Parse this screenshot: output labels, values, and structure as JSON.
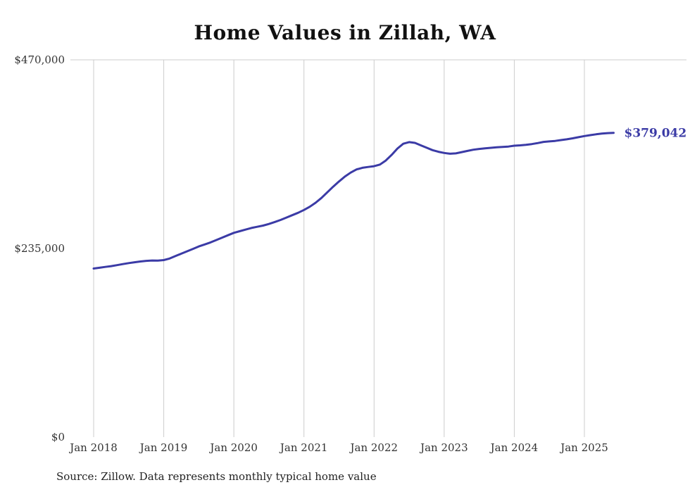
{
  "chart": {
    "title": "Home Values in Zillah, WA",
    "source": "Source: Zillow. Data represents monthly typical home value"
  },
  "chart_data": {
    "type": "line",
    "title": "Home Values in Zillah, WA",
    "xlabel": "",
    "ylabel": "",
    "ylim": [
      0,
      470000
    ],
    "grid": "vertical-at-january",
    "legend": "none",
    "line_color": "#3b3ba6",
    "grid_color": "#cccccc",
    "text_color": "#333333",
    "annotation": "$379,042",
    "x_interval": "monthly",
    "x_start": "Jan 2018",
    "x_end": "Jun 2025",
    "y_ticks": [
      {
        "label": "$470,000",
        "value": 470000
      },
      {
        "label": "$235,000",
        "value": 235000
      },
      {
        "label": "$0",
        "value": 0
      }
    ],
    "x_ticks": [
      {
        "label": "Jan 2018",
        "month": 0
      },
      {
        "label": "Jan 2019",
        "month": 12
      },
      {
        "label": "Jan 2020",
        "month": 24
      },
      {
        "label": "Jan 2021",
        "month": 36
      },
      {
        "label": "Jan 2022",
        "month": 48
      },
      {
        "label": "Jan 2023",
        "month": 60
      },
      {
        "label": "Jan 2024",
        "month": 72
      },
      {
        "label": "Jan 2025",
        "month": 84
      }
    ],
    "values": [
      210000,
      211000,
      212000,
      213000,
      214200,
      215500,
      216800,
      217800,
      218800,
      219600,
      220000,
      219800,
      220500,
      222500,
      225500,
      228500,
      231500,
      234500,
      237500,
      240000,
      242500,
      245500,
      248500,
      251500,
      254500,
      256500,
      258500,
      260500,
      262000,
      263500,
      265500,
      268000,
      270500,
      273500,
      276500,
      279500,
      283000,
      287000,
      292000,
      298000,
      305000,
      312000,
      318500,
      324500,
      329500,
      333500,
      335500,
      336500,
      337500,
      339500,
      344500,
      351500,
      359500,
      365500,
      367500,
      366500,
      363500,
      360500,
      357500,
      355500,
      354000,
      353000,
      353500,
      355000,
      356500,
      358000,
      359000,
      359800,
      360400,
      361000,
      361500,
      362000,
      363000,
      363500,
      364200,
      365000,
      366300,
      367800,
      368400,
      369000,
      370000,
      371000,
      372200,
      373600,
      375000,
      376200,
      377200,
      378100,
      378700,
      379042
    ]
  }
}
